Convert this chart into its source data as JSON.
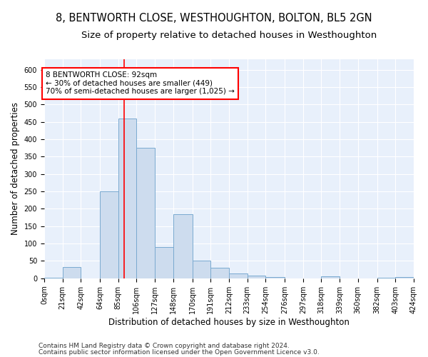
{
  "title": "8, BENTWORTH CLOSE, WESTHOUGHTON, BOLTON, BL5 2GN",
  "subtitle": "Size of property relative to detached houses in Westhoughton",
  "xlabel": "Distribution of detached houses by size in Westhoughton",
  "ylabel": "Number of detached properties",
  "bar_color": "#cddcee",
  "bar_edge_color": "#7aaad0",
  "vline_x": 92,
  "vline_color": "red",
  "annotation_text": "8 BENTWORTH CLOSE: 92sqm\n← 30% of detached houses are smaller (449)\n70% of semi-detached houses are larger (1,025) →",
  "annotation_box_color": "white",
  "annotation_box_edge": "red",
  "footer1": "Contains HM Land Registry data © Crown copyright and database right 2024.",
  "footer2": "Contains public sector information licensed under the Open Government Licence v3.0.",
  "bin_edges": [
    0,
    21,
    42,
    64,
    85,
    106,
    127,
    148,
    170,
    191,
    212,
    233,
    254,
    276,
    297,
    318,
    339,
    360,
    382,
    403,
    424
  ],
  "bin_counts": [
    2,
    32,
    0,
    250,
    460,
    375,
    90,
    185,
    50,
    30,
    15,
    8,
    3,
    0,
    0,
    5,
    0,
    0,
    2,
    3
  ],
  "ylim": [
    0,
    630
  ],
  "yticks": [
    0,
    50,
    100,
    150,
    200,
    250,
    300,
    350,
    400,
    450,
    500,
    550,
    600
  ],
  "bg_color": "#e8f0fb",
  "fig_bg_color": "#ffffff",
  "title_fontsize": 10.5,
  "subtitle_fontsize": 9.5,
  "label_fontsize": 8.5,
  "tick_fontsize": 7,
  "footer_fontsize": 6.5
}
